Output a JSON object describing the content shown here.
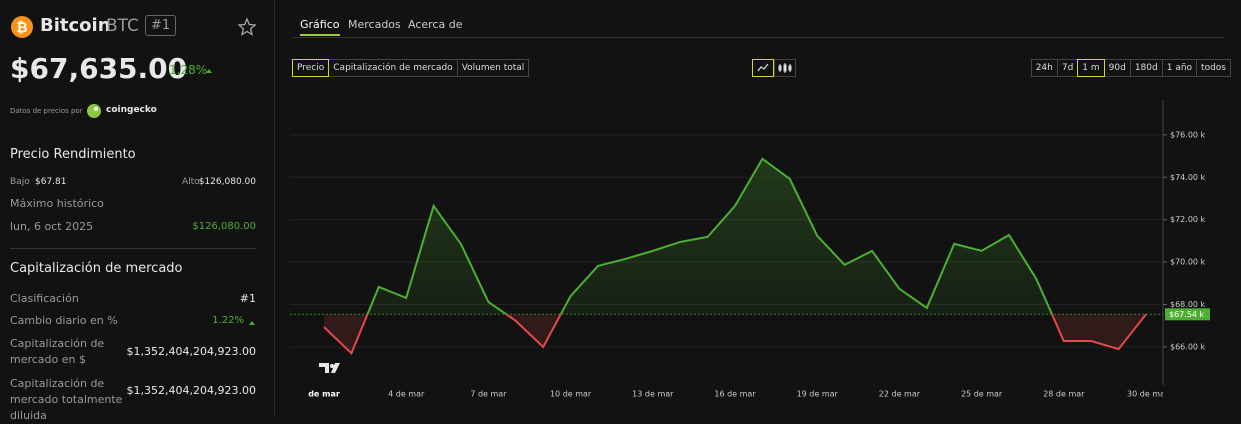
{
  "header": {
    "name": "Bitcoin",
    "symbol": "BTC",
    "rank": "#1",
    "price": "$67,635.00",
    "change": "1.28%",
    "source_label": "Datos de precios por",
    "source": "coingecko"
  },
  "performance": {
    "title": "Precio Rendimiento",
    "low_label": "Bajo",
    "low": "$67.81",
    "high_label": "Alto",
    "high": "$126,080.00",
    "ath_label": "Máximo histórico",
    "ath_date": "lun, 6 oct 2025",
    "ath_value": "$126,080.00"
  },
  "market": {
    "title": "Capitalización de mercado",
    "rows": [
      [
        "Clasificación",
        "#1"
      ],
      [
        "Cambio diario en %",
        "1.22%"
      ],
      [
        "Capitalización de mercado en $",
        "$1,352,404,204,923.00"
      ],
      [
        "Capitalización de mercado totalmente diluida",
        "$1,352,404,204,923.00"
      ]
    ]
  },
  "tabs": [
    "Gráfico",
    "Mercados",
    "Acerca de"
  ],
  "metric_buttons": [
    "Precio",
    "Capitalización de mercado",
    "Volumen total"
  ],
  "range_buttons": [
    "24h",
    "7d",
    "1 m",
    "90d",
    "180d",
    "1 año",
    "todos"
  ],
  "chart_data": {
    "type": "line",
    "categories": [
      "de mar",
      null,
      null,
      "4 de mar",
      null,
      null,
      "7 de mar",
      null,
      null,
      "10 de mar",
      null,
      null,
      "13 de mar",
      null,
      null,
      "16 de mar",
      null,
      null,
      "19 de mar",
      null,
      null,
      "22 de mar",
      null,
      null,
      "25 de mar",
      null,
      null,
      "28 de mar",
      null,
      null,
      "30 de ma"
    ],
    "values": [
      66.94,
      65.7,
      68.83,
      68.31,
      72.65,
      70.85,
      68.12,
      67.23,
      66.0,
      68.4,
      69.82,
      70.15,
      70.53,
      70.95,
      71.19,
      72.65,
      74.87,
      73.92,
      71.24,
      69.87,
      70.53,
      68.74,
      67.84,
      70.86,
      70.53,
      71.28,
      69.2,
      66.28,
      66.28,
      65.9,
      67.54
    ],
    "color": "#4caf32",
    "down_color": "#e5484d",
    "current_price": {
      "value": 67.54,
      "label": "$67.54 k"
    },
    "ylim": [
      64.3,
      76.7
    ],
    "yticks": [
      {
        "value": 66,
        "label": "$66.00 k"
      },
      {
        "value": 68,
        "label": "$68.00 k"
      },
      {
        "value": 70,
        "label": "$70.00 k"
      },
      {
        "value": 72,
        "label": "$72.00 k"
      },
      {
        "value": 74,
        "label": "$74.00 k"
      },
      {
        "value": 76,
        "label": "$76.00 k"
      }
    ],
    "grid": true
  }
}
